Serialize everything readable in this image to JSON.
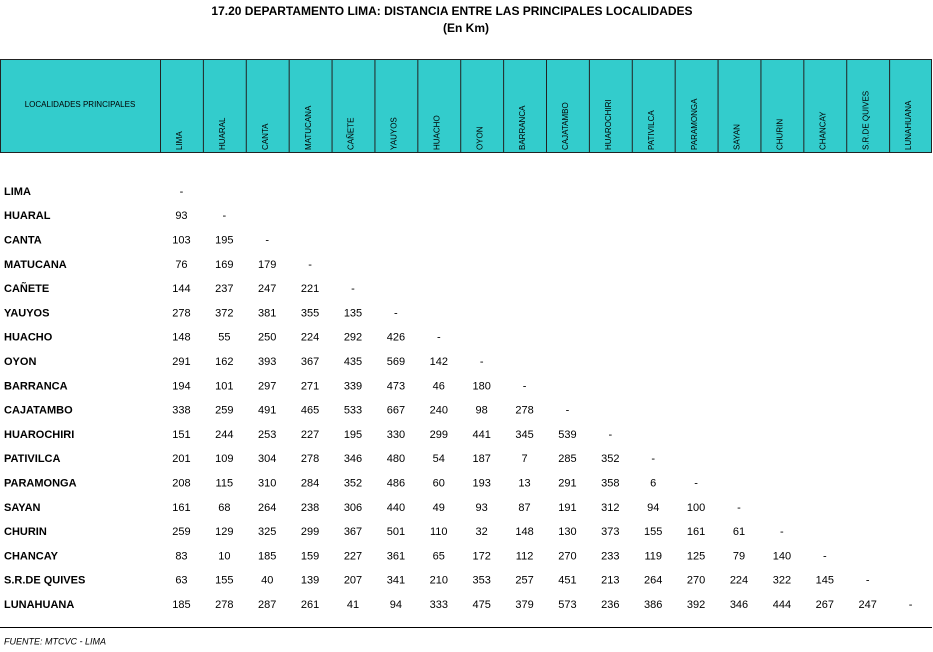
{
  "header": {
    "title": "17.20 DEPARTAMENTO LIMA: DISTANCIA ENTRE LAS PRINCIPALES LOCALIDADES",
    "subtitle": "(En Km)"
  },
  "table": {
    "corner": "LOCALIDADES PRINCIPALES",
    "columns": [
      "LIMA",
      "HUARAL",
      "CANTA",
      "MATUCANA",
      "CAÑETE",
      "YAUYOS",
      "HUACHO",
      "OYON",
      "BARRANCA",
      "CAJATAMBO",
      "HUAROCHIRI",
      "PATIVILCA",
      "PARAMONGA",
      "SAYAN",
      "CHURIN",
      "CHANCAY",
      "S.R.DE QUIVES",
      "LUNAHUANA"
    ],
    "rows": [
      {
        "name": "LIMA",
        "values": [
          "-"
        ]
      },
      {
        "name": "HUARAL",
        "values": [
          93,
          "-"
        ]
      },
      {
        "name": "CANTA",
        "values": [
          103,
          195,
          "-"
        ]
      },
      {
        "name": "MATUCANA",
        "values": [
          76,
          169,
          179,
          "-"
        ]
      },
      {
        "name": "CAÑETE",
        "values": [
          144,
          237,
          247,
          221,
          "-"
        ]
      },
      {
        "name": "YAUYOS",
        "values": [
          278,
          372,
          381,
          355,
          135,
          "-"
        ]
      },
      {
        "name": "HUACHO",
        "values": [
          148,
          55,
          250,
          224,
          292,
          426,
          "-"
        ]
      },
      {
        "name": "OYON",
        "values": [
          291,
          162,
          393,
          367,
          435,
          569,
          142,
          "-"
        ]
      },
      {
        "name": "BARRANCA",
        "values": [
          194,
          101,
          297,
          271,
          339,
          473,
          46,
          180,
          "-"
        ]
      },
      {
        "name": "CAJATAMBO",
        "values": [
          338,
          259,
          491,
          465,
          533,
          667,
          240,
          98,
          278,
          "-"
        ]
      },
      {
        "name": "HUAROCHIRI",
        "values": [
          151,
          244,
          253,
          227,
          195,
          330,
          299,
          441,
          345,
          539,
          "-"
        ]
      },
      {
        "name": "PATIVILCA",
        "values": [
          201,
          109,
          304,
          278,
          346,
          480,
          54,
          187,
          7,
          285,
          352,
          "-"
        ]
      },
      {
        "name": "PARAMONGA",
        "values": [
          208,
          115,
          310,
          284,
          352,
          486,
          60,
          193,
          13,
          291,
          358,
          6,
          "-"
        ]
      },
      {
        "name": "SAYAN",
        "values": [
          161,
          68,
          264,
          238,
          306,
          440,
          49,
          93,
          87,
          191,
          312,
          94,
          100,
          "-"
        ]
      },
      {
        "name": "CHURIN",
        "values": [
          259,
          129,
          325,
          299,
          367,
          501,
          110,
          32,
          148,
          130,
          373,
          155,
          161,
          61,
          "-"
        ]
      },
      {
        "name": "CHANCAY",
        "values": [
          83,
          10,
          185,
          159,
          227,
          361,
          65,
          172,
          112,
          270,
          233,
          119,
          125,
          79,
          140,
          "-"
        ]
      },
      {
        "name": "S.R.DE QUIVES",
        "values": [
          63,
          155,
          40,
          139,
          207,
          341,
          210,
          353,
          257,
          451,
          213,
          264,
          270,
          224,
          322,
          145,
          "-"
        ]
      },
      {
        "name": "LUNAHUANA",
        "values": [
          185,
          278,
          287,
          261,
          41,
          94,
          333,
          475,
          379,
          573,
          236,
          386,
          392,
          346,
          444,
          267,
          247,
          "-"
        ]
      }
    ]
  },
  "footer": {
    "source": "FUENTE:  MTCVC - LIMA"
  }
}
